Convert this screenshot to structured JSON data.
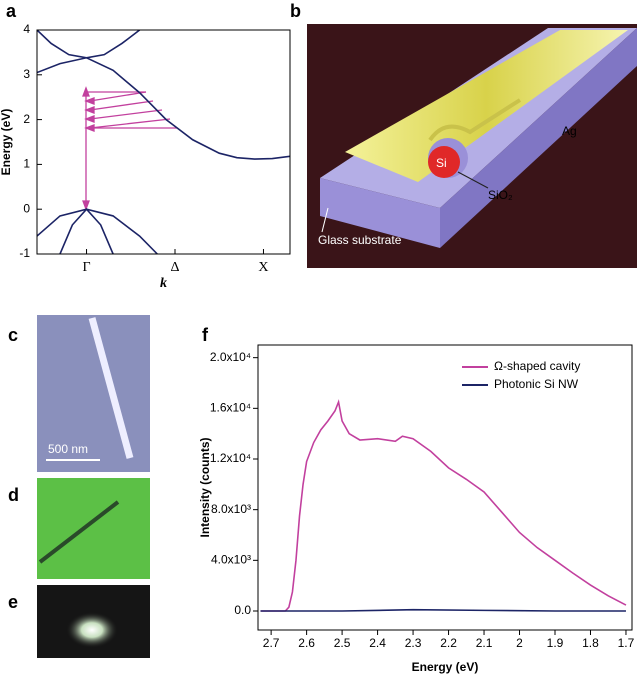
{
  "figure": {
    "panel_labels": [
      "a",
      "b",
      "c",
      "d",
      "e",
      "f"
    ],
    "schematic": {
      "labels": [
        "Ag",
        "Si",
        "SiO₂",
        "Glass substrate"
      ]
    },
    "micrograph": {
      "scale_bar": "500 nm"
    }
  },
  "chart_data": [
    {
      "type": "line",
      "x_label": "k",
      "y_label": "Energy (eV)",
      "xlim": [
        -0.28,
        1.15
      ],
      "ylim": [
        -1,
        4
      ],
      "xticks": [
        {
          "value": 0,
          "label": "Γ"
        },
        {
          "value": 0.5,
          "label": "Δ"
        },
        {
          "value": 1,
          "label": "X"
        }
      ],
      "yticks": [
        -1,
        0,
        1,
        2,
        3,
        4
      ],
      "series": [
        {
          "color": "#1c2466",
          "x": [
            -0.28,
            -0.2,
            -0.1,
            0,
            0.1,
            0.2,
            0.3
          ],
          "values": [
            4,
            3.7,
            3.45,
            3.38,
            3.45,
            3.7,
            4
          ]
        },
        {
          "color": "#1c2466",
          "x": [
            -0.28,
            -0.15,
            0,
            0.15,
            0.3,
            0.45,
            0.6,
            0.75,
            0.85,
            0.95,
            1.05,
            1.15
          ],
          "values": [
            3.05,
            3.25,
            3.38,
            3.1,
            2.6,
            2.0,
            1.55,
            1.25,
            1.15,
            1.12,
            1.13,
            1.18
          ]
        },
        {
          "color": "#1c2466",
          "x": [
            -0.28,
            -0.15,
            0,
            0.15,
            0.3,
            0.4
          ],
          "values": [
            -0.6,
            -0.15,
            0,
            -0.15,
            -0.6,
            -1
          ]
        },
        {
          "color": "#1c2466",
          "x": [
            -0.15,
            -0.08,
            0,
            0.08,
            0.15
          ],
          "values": [
            -1,
            -0.35,
            0,
            -0.35,
            -1
          ]
        }
      ]
    },
    {
      "type": "line",
      "x_label": "Energy (eV)",
      "y_label": "Intensity (counts)",
      "xlim": [
        2.737,
        1.683
      ],
      "ylim": [
        -1500,
        21000
      ],
      "xticks": [
        2.7,
        2.6,
        2.5,
        2.4,
        2.3,
        2.2,
        2.1,
        2.0,
        1.9,
        1.8,
        1.7
      ],
      "yticks": [
        {
          "value": 0,
          "label": "0.0"
        },
        {
          "value": 4000,
          "label": "4.0x10³"
        },
        {
          "value": 8000,
          "label": "8.0x10³"
        },
        {
          "value": 12000,
          "label": "1.2x10⁴"
        },
        {
          "value": 16000,
          "label": "1.6x10⁴"
        },
        {
          "value": 20000,
          "label": "2.0x10⁴"
        }
      ],
      "legend": "upper right",
      "series": [
        {
          "name": "Ω-shaped cavity",
          "color": "#c2409e",
          "x": [
            2.73,
            2.66,
            2.65,
            2.64,
            2.63,
            2.62,
            2.61,
            2.6,
            2.58,
            2.56,
            2.54,
            2.52,
            2.51,
            2.5,
            2.48,
            2.45,
            2.4,
            2.35,
            2.33,
            2.3,
            2.25,
            2.2,
            2.15,
            2.1,
            2.05,
            2.0,
            1.95,
            1.9,
            1.85,
            1.8,
            1.75,
            1.7
          ],
          "values": [
            0,
            0,
            300,
            1500,
            4000,
            7500,
            10000,
            11800,
            13300,
            14300,
            15000,
            15800,
            16500,
            15000,
            14000,
            13500,
            13600,
            13400,
            13800,
            13600,
            12600,
            11300,
            10400,
            9400,
            7800,
            6200,
            5000,
            4000,
            3000,
            2050,
            1200,
            470
          ]
        },
        {
          "name": "Photonic Si NW",
          "color": "#1c2466",
          "x": [
            2.73,
            2.5,
            2.3,
            2.1,
            1.9,
            1.7
          ],
          "values": [
            0,
            0,
            100,
            50,
            0,
            0
          ]
        }
      ]
    }
  ]
}
